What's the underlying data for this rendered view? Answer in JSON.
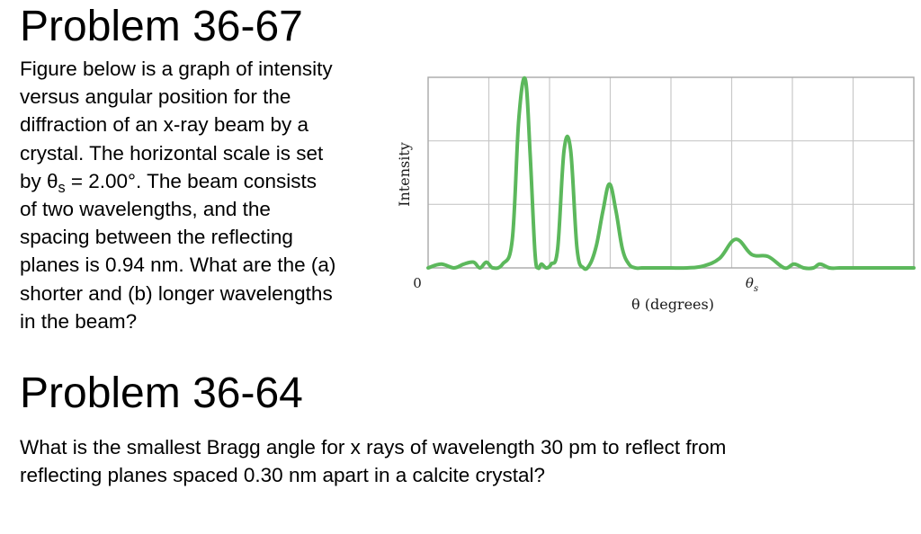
{
  "problem1": {
    "title": "Problem 36-67",
    "text": {
      "l1": "Figure below is a graph of intensity",
      "l2": "versus angular position for the",
      "l3": "diffraction of an x-ray beam by a",
      "l4": "crystal. The horizontal scale is set",
      "l5_pre": "by θ",
      "l5_sub": "s",
      "l5_post": " = 2.00°. The beam consists",
      "l6": "of two wavelengths, and the",
      "l7": "spacing between the reflecting",
      "l8": "planes is 0.94 nm. What are the (a)",
      "l9": "shorter and (b) longer wavelengths",
      "l10": "in the beam?"
    }
  },
  "problem2": {
    "title": "Problem 36-64",
    "text": {
      "l1": "What is the smallest Bragg angle for x rays of wavelength 30 pm to reflect from",
      "l2": "reflecting planes spaced 0.30 nm apart in a calcite crystal?"
    }
  },
  "chart_data": {
    "type": "line",
    "xlabel": "θ (degrees)",
    "ylabel": "Intensity",
    "x_ticks": [
      {
        "value": 0,
        "label": "0"
      },
      {
        "value": 2.0,
        "label": "θs"
      }
    ],
    "xlim": [
      0,
      3.0
    ],
    "ylim": [
      0,
      1.0
    ],
    "grid": true,
    "line_color": "#5cb85c",
    "series": [
      {
        "x": [
          0.0,
          0.08,
          0.16,
          0.22,
          0.28,
          0.32,
          0.36,
          0.4,
          0.46,
          0.52,
          0.56,
          0.6,
          0.63,
          0.66,
          0.68,
          0.7,
          0.73,
          0.76,
          0.8,
          0.84,
          0.88,
          0.92,
          0.96,
          1.0,
          1.04,
          1.08,
          1.12,
          1.16,
          1.2,
          1.24,
          1.28,
          1.32,
          1.36,
          1.4,
          1.45,
          1.5,
          1.6,
          1.7,
          1.8,
          1.9,
          2.0,
          2.1,
          2.2,
          2.26,
          2.32,
          2.38,
          2.42,
          2.48,
          2.54,
          2.6,
          2.66,
          2.7,
          2.76,
          2.82,
          2.9,
          3.0
        ],
        "y": [
          0.0,
          0.02,
          0.0,
          0.02,
          0.03,
          0.0,
          0.03,
          0.0,
          0.02,
          0.15,
          0.78,
          0.99,
          0.6,
          0.08,
          0.0,
          0.02,
          0.0,
          0.02,
          0.1,
          0.62,
          0.62,
          0.1,
          0.0,
          0.02,
          0.12,
          0.3,
          0.44,
          0.3,
          0.1,
          0.02,
          0.0,
          0.0,
          0.0,
          0.0,
          0.0,
          0.0,
          0.0,
          0.01,
          0.05,
          0.15,
          0.07,
          0.06,
          0.0,
          0.02,
          0.0,
          0.0,
          0.02,
          0.0,
          0.0,
          0.0,
          0.0,
          0.0,
          0.0,
          0.0,
          0.0,
          0.0
        ]
      }
    ]
  }
}
